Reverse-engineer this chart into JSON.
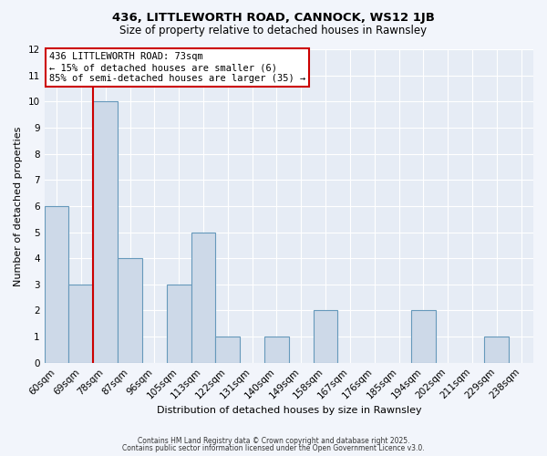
{
  "title1": "436, LITTLEWORTH ROAD, CANNOCK, WS12 1JB",
  "title2": "Size of property relative to detached houses in Rawnsley",
  "xlabel": "Distribution of detached houses by size in Rawnsley",
  "ylabel": "Number of detached properties",
  "bin_labels": [
    "60sqm",
    "69sqm",
    "78sqm",
    "87sqm",
    "96sqm",
    "105sqm",
    "113sqm",
    "122sqm",
    "131sqm",
    "140sqm",
    "149sqm",
    "158sqm",
    "167sqm",
    "176sqm",
    "185sqm",
    "194sqm",
    "202sqm",
    "211sqm",
    "229sqm",
    "238sqm"
  ],
  "bin_counts": [
    6,
    3,
    10,
    4,
    0,
    3,
    5,
    1,
    0,
    1,
    0,
    2,
    0,
    0,
    0,
    2,
    0,
    0,
    1,
    0
  ],
  "bar_color": "#cdd9e8",
  "bar_edge_color": "#6699bb",
  "subject_line_color": "#cc0000",
  "annotation_text": "436 LITTLEWORTH ROAD: 73sqm\n← 15% of detached houses are smaller (6)\n85% of semi-detached houses are larger (35) →",
  "annotation_box_color": "#ffffff",
  "annotation_box_edge": "#cc0000",
  "ylim": [
    0,
    12
  ],
  "yticks": [
    0,
    1,
    2,
    3,
    4,
    5,
    6,
    7,
    8,
    9,
    10,
    11,
    12
  ],
  "footer1": "Contains HM Land Registry data © Crown copyright and database right 2025.",
  "footer2": "Contains public sector information licensed under the Open Government Licence v3.0.",
  "bg_color": "#f2f5fb",
  "plot_bg_color": "#e6ecf5",
  "grid_color": "#ffffff",
  "title1_fontsize": 9.5,
  "title2_fontsize": 8.5,
  "xlabel_fontsize": 8,
  "ylabel_fontsize": 8,
  "tick_fontsize": 7.5,
  "annotation_fontsize": 7.5,
  "footer_fontsize": 5.5
}
